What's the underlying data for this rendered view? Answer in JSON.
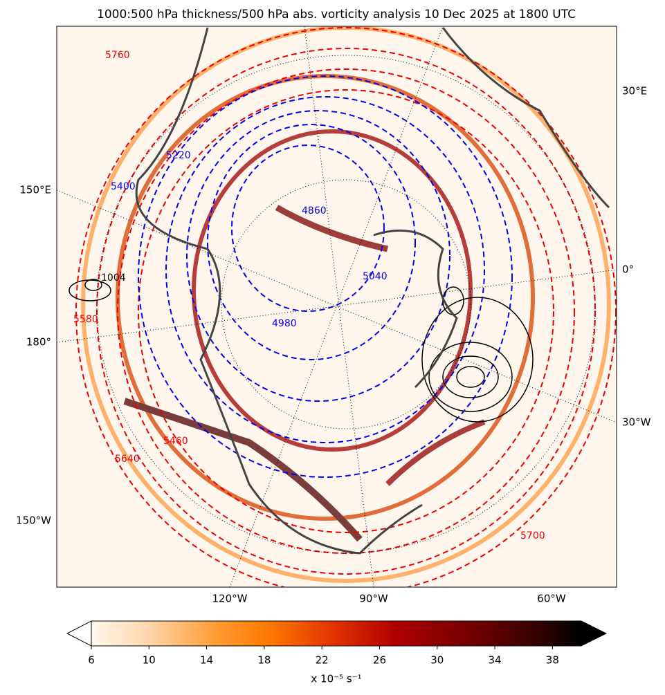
{
  "title": "1000:500 hPa thickness/500 hPa abs. vorticity analysis 10 Dec 2025 at 1800 UTC",
  "map": {
    "bottom_labels": [
      "120°W",
      "90°W",
      "60°W"
    ],
    "left_labels": [
      "150°E",
      "180°",
      "150°W"
    ],
    "right_labels": [
      "30°E",
      "0°",
      "30°W"
    ],
    "contour_labels": [
      "5760",
      "5220",
      "5400",
      "4860",
      "5040",
      "5580",
      "4980",
      "5460",
      "5640",
      "5700",
      "1004"
    ]
  },
  "colorbar": {
    "lim": [
      6,
      40
    ],
    "ticks": [
      6,
      10,
      14,
      18,
      22,
      26,
      30,
      34,
      38
    ],
    "label": "x 10⁻⁵ s⁻¹"
  }
}
